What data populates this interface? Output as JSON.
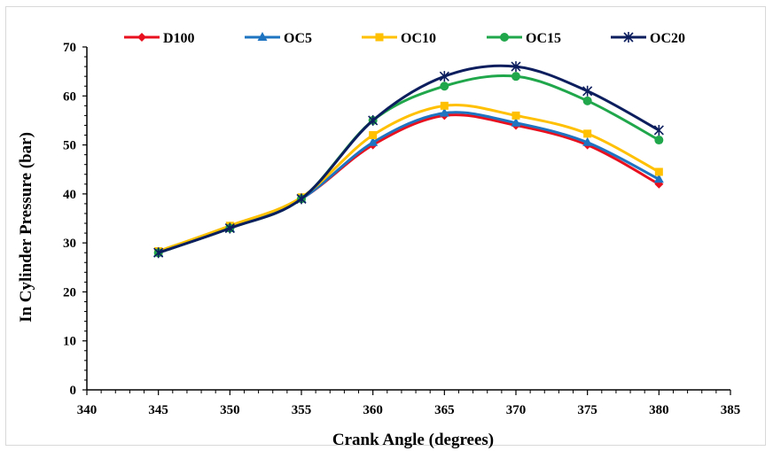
{
  "chart_data": {
    "type": "line",
    "xlabel": "Crank Angle (degrees)",
    "ylabel": "In Cylinder Pressure (bar)",
    "xlim": [
      340,
      385
    ],
    "ylim": [
      0,
      70
    ],
    "xticks": [
      340,
      345,
      350,
      355,
      360,
      365,
      370,
      375,
      380,
      385
    ],
    "yticks": [
      0,
      10,
      20,
      30,
      40,
      50,
      60,
      70
    ],
    "grid": false,
    "legend_position": "top",
    "x": [
      345,
      350,
      355,
      360,
      365,
      370,
      375,
      380
    ],
    "series": [
      {
        "name": "D100",
        "color": "#e8101e",
        "marker": "diamond",
        "values": [
          28,
          33,
          39,
          50,
          56,
          54,
          50,
          42
        ]
      },
      {
        "name": "OC5",
        "color": "#1f74c2",
        "marker": "triangle",
        "values": [
          28,
          33,
          39,
          50.5,
          56.5,
          54.5,
          50.5,
          43
        ]
      },
      {
        "name": "OC10",
        "color": "#ffc000",
        "marker": "square",
        "values": [
          28.3,
          33.5,
          39.3,
          52,
          58,
          56,
          52.3,
          44.5
        ]
      },
      {
        "name": "OC15",
        "color": "#20a74b",
        "marker": "circle",
        "values": [
          28,
          33,
          39,
          55,
          62,
          64,
          59,
          51
        ]
      },
      {
        "name": "OC20",
        "color": "#0d1e5e",
        "marker": "asterisk",
        "values": [
          28,
          33,
          39,
          55,
          64,
          66,
          61,
          53
        ]
      }
    ]
  }
}
